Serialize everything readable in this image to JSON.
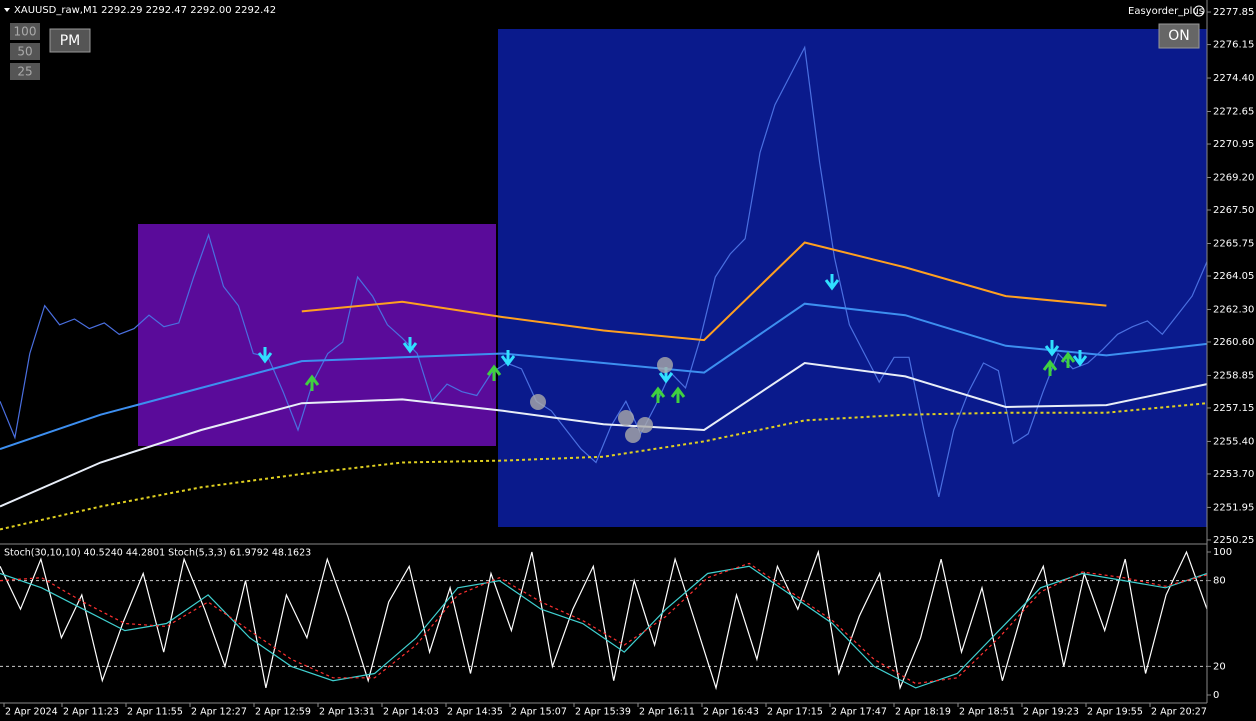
{
  "header": {
    "symbol_info": "XAUUSD_raw,M1  2292.29 2292.47 2292.00 2292.42",
    "expert": "Easyorder_plus"
  },
  "buttons": {
    "lot_100": "100",
    "lot_50": "50",
    "lot_25": "25",
    "pm": "PM",
    "on": "ON"
  },
  "price_chart": {
    "ylim": [
      2250.09,
      2278.48
    ],
    "yticks": [
      2277.85,
      2276.15,
      {
        "value": 2274.4,
        "label": "2274.40"
      },
      2272.65,
      2270.95,
      {
        "value": 2269.2,
        "label": "2269.20"
      },
      {
        "value": 2267.5,
        "label": "2267.50"
      },
      2265.75,
      2264.05,
      {
        "value": 2262.3,
        "label": "2262.30"
      },
      {
        "value": 2260.6,
        "label": "2260.60"
      },
      2258.85,
      2257.15,
      {
        "value": 2255.4,
        "label": "2255.40"
      },
      {
        "value": 2253.7,
        "label": "2253.70"
      },
      2251.95,
      2250.25
    ],
    "series": [
      {
        "color": "#4a6fe0",
        "values": [
          2257.5,
          2255.6,
          2260,
          2262.5,
          2261.5,
          2261.8,
          2261.3,
          2261.6,
          2261,
          2261.3,
          2262,
          2261.4,
          2261.6,
          2264,
          2266.2,
          2263.5,
          2262.5,
          2260,
          2259.8,
          2258,
          2256,
          2258.5,
          2260,
          2260.6,
          2264,
          2263,
          2261.5,
          2260.8,
          2260,
          2257.5,
          2258.4,
          2258,
          2257.8,
          2259,
          2259.5,
          2259.2,
          2257.5,
          2257,
          2256,
          2255,
          2254.3,
          2256.2,
          2257.5,
          2255.8,
          2257.3,
          2259,
          2258.2,
          2260.8,
          2264,
          2265.2,
          2266,
          2270.5,
          2273,
          2274.5,
          2276,
          2270,
          2265,
          2261.5,
          2260,
          2258.5,
          2259.8,
          2259.8,
          2256,
          2252.5,
          2256,
          2258,
          2259.5,
          2259.1,
          2255.3,
          2255.8,
          2258,
          2260,
          2259.2,
          2259.5,
          2260.2,
          2261,
          2261.4,
          2261.7,
          2261,
          2262,
          2263,
          2264.8
        ]
      },
      {
        "color": "#3d8ff0",
        "values": [
          2255.0,
          2256.8,
          2258.2,
          2259.6,
          2259.8,
          2260.0,
          2259.5,
          2259.0,
          2262.6,
          2262.0,
          2260.4,
          2259.9,
          2260.5
        ]
      },
      {
        "color": "#e8eef8",
        "values": [
          2252.0,
          2254.3,
          2256.0,
          2257.4,
          2257.6,
          2257.0,
          2256.3,
          2256.0,
          2259.5,
          2258.8,
          2257.2,
          2257.3,
          2258.4
        ]
      },
      {
        "color": "#ffa020",
        "values": [
          null,
          null,
          null,
          2262.2,
          2262.7,
          2261.9,
          2261.2,
          2260.7,
          2265.8,
          2264.5,
          2263,
          2262.5,
          null
        ]
      },
      {
        "color": "#e0d020",
        "dashed": true,
        "values": [
          2250.8,
          2252.0,
          2253.0,
          2253.7,
          2254.3,
          2254.4,
          2254.6,
          2255.4,
          2256.5,
          2256.8,
          2256.9,
          2256.9,
          2257.4
        ]
      }
    ]
  },
  "time_axis": {
    "labels": [
      "2 Apr 2024",
      "2 Apr 11:23",
      "2 Apr 11:55",
      "2 Apr 12:27",
      "2 Apr 12:59",
      "2 Apr 13:31",
      "2 Apr 14:03",
      "2 Apr 14:35",
      "2 Apr 15:07",
      "2 Apr 15:39",
      "2 Apr 16:11",
      "2 Apr 16:43",
      "2 Apr 17:15",
      "2 Apr 17:47",
      "2 Apr 18:19",
      "2 Apr 18:51",
      "2 Apr 19:23",
      "2 Apr 19:55",
      "2 Apr 20:27"
    ]
  },
  "indicator": {
    "label": "Stoch(30,10,10) 40.5240 44.2801  Stoch(5,3,3) 61.9792 48.1623",
    "ylim": [
      0,
      100
    ],
    "yticks": [
      100,
      80,
      20,
      0
    ],
    "levels": [
      80,
      20
    ],
    "series": [
      {
        "color": "#ffffff",
        "values": [
          90,
          60,
          95,
          40,
          70,
          10,
          50,
          85,
          30,
          95,
          60,
          20,
          80,
          5,
          70,
          40,
          95,
          55,
          10,
          65,
          90,
          30,
          75,
          15,
          85,
          45,
          100,
          20,
          60,
          90,
          10,
          80,
          35,
          95,
          50,
          5,
          70,
          25,
          90,
          60,
          100,
          15,
          55,
          85,
          5,
          40,
          95,
          30,
          75,
          10,
          60,
          90,
          20,
          85,
          45,
          95,
          15,
          70,
          100,
          60
        ]
      },
      {
        "color": "#40d0d0",
        "values": [
          85,
          75,
          60,
          45,
          50,
          70,
          40,
          20,
          10,
          15,
          40,
          75,
          80,
          60,
          50,
          30,
          60,
          85,
          90,
          70,
          50,
          20,
          5,
          15,
          45,
          75,
          85,
          80,
          75,
          85
        ]
      },
      {
        "color": "#ff3030",
        "dashed": true,
        "values": [
          80,
          82,
          65,
          50,
          48,
          65,
          45,
          25,
          12,
          12,
          35,
          70,
          82,
          65,
          52,
          35,
          55,
          82,
          92,
          72,
          52,
          25,
          8,
          12,
          40,
          72,
          86,
          82,
          76,
          84
        ]
      }
    ]
  }
}
